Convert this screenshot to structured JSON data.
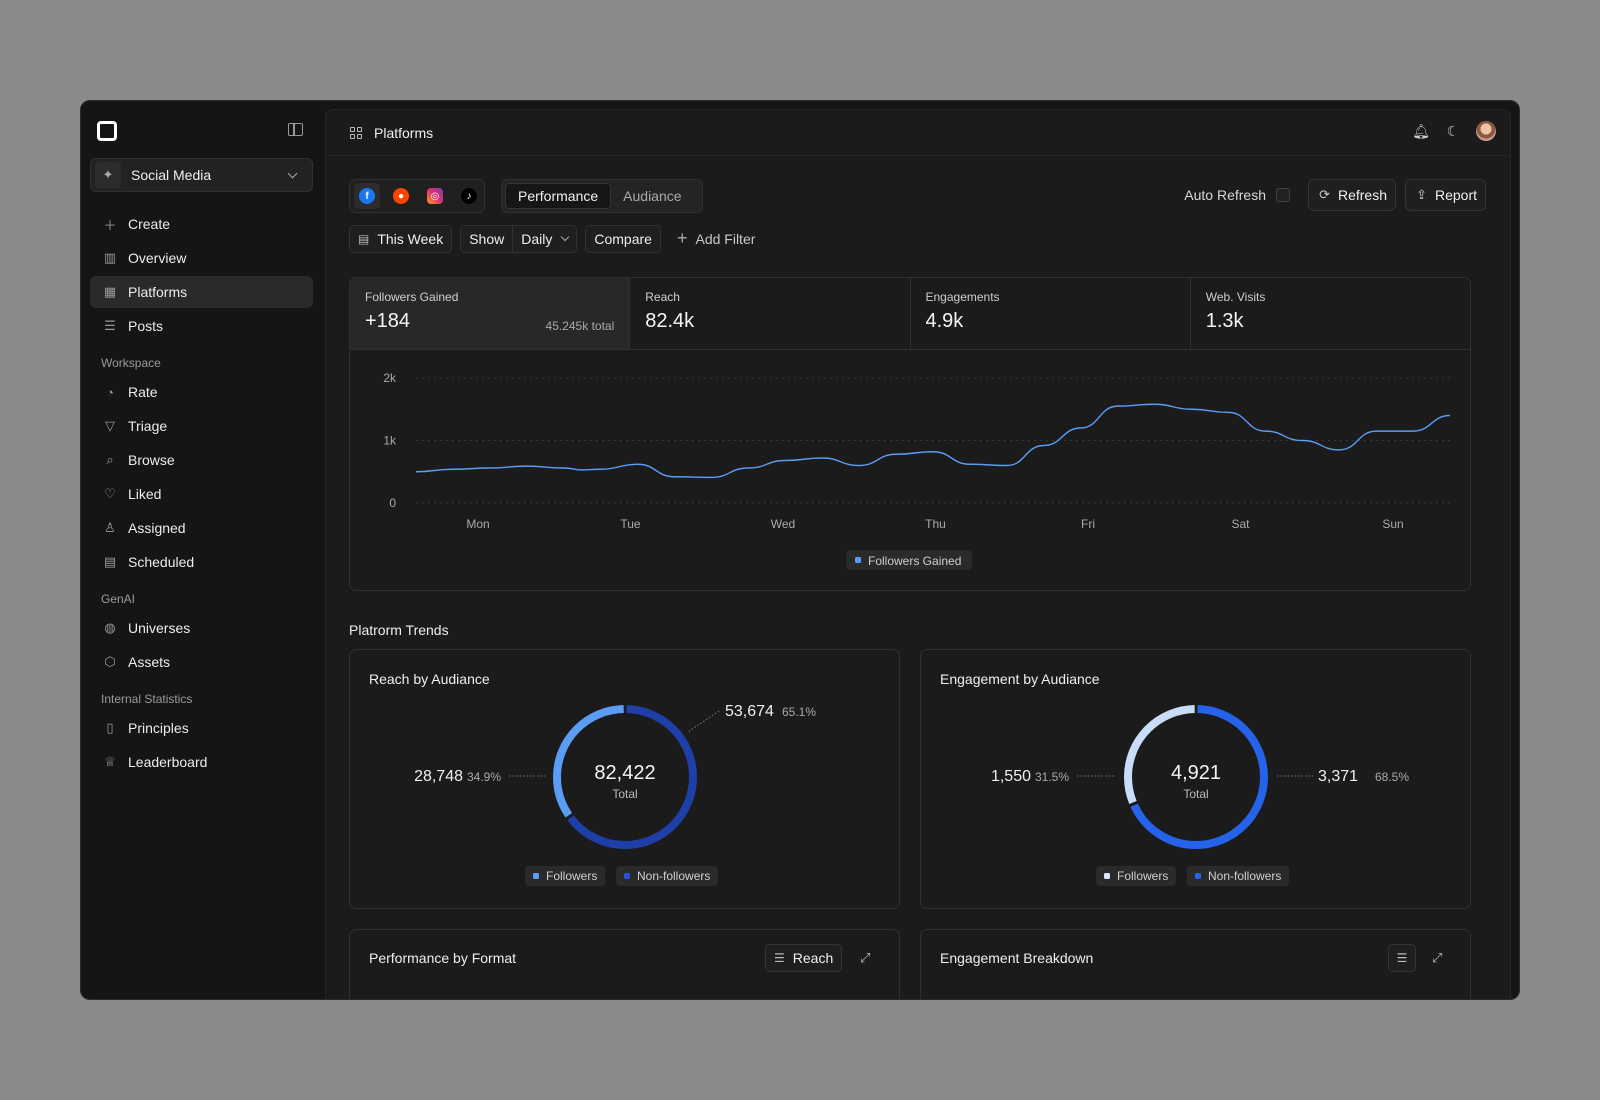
{
  "sidebar": {
    "workspace": "Social Media",
    "items": [
      {
        "label": "Create",
        "icon": "plus-icon"
      },
      {
        "label": "Overview",
        "icon": "bar-chart-icon"
      },
      {
        "label": "Platforms",
        "icon": "grid-icon",
        "active": true
      },
      {
        "label": "Posts",
        "icon": "stack-icon"
      }
    ],
    "workspace_section": "Workspace",
    "workspace_items": [
      {
        "label": "Rate",
        "icon": "gauge-icon"
      },
      {
        "label": "Triage",
        "icon": "filter-icon"
      },
      {
        "label": "Browse",
        "icon": "search-icon"
      },
      {
        "label": "Liked",
        "icon": "heart-icon"
      },
      {
        "label": "Assigned",
        "icon": "user-check-icon"
      },
      {
        "label": "Scheduled",
        "icon": "calendar-icon"
      }
    ],
    "genai_section": "GenAI",
    "genai_items": [
      {
        "label": "Universes",
        "icon": "planet-icon"
      },
      {
        "label": "Assets",
        "icon": "cube-icon"
      }
    ],
    "stats_section": "Internal Statistics",
    "stats_items": [
      {
        "label": "Principles",
        "icon": "book-icon"
      },
      {
        "label": "Leaderboard",
        "icon": "trophy-icon"
      }
    ]
  },
  "header": {
    "title": "Platforms"
  },
  "toolbar": {
    "tabs": [
      "Performance",
      "Audiance"
    ],
    "auto_refresh": "Auto Refresh",
    "refresh": "Refresh",
    "report": "Report",
    "date_range": "This Week",
    "show": "Show",
    "interval": "Daily",
    "compare": "Compare",
    "add_filter": "Add Filter"
  },
  "metrics": [
    {
      "label": "Followers Gained",
      "value": "+184",
      "total": "45.245k total"
    },
    {
      "label": "Reach",
      "value": "82.4k"
    },
    {
      "label": "Engagements",
      "value": "4.9k"
    },
    {
      "label": "Web. Visits",
      "value": "1.3k"
    }
  ],
  "colors": {
    "line": "#5b9cf5",
    "followers_light": "#5b9cf5",
    "nonfollowers_dark": "#1f3fa8",
    "eng_light": "#c9dcf8",
    "eng_dark": "#2563eb"
  },
  "chart_data": [
    {
      "type": "line",
      "categories": [
        "Mon",
        "Tue",
        "Wed",
        "Thu",
        "Fri",
        "Sat",
        "Sun"
      ],
      "yticks": [
        "2k",
        "1k",
        "0"
      ],
      "ylim": [
        0,
        2000
      ],
      "x": [
        0,
        0.5,
        1,
        1.5,
        2,
        2.25,
        2.5,
        3,
        3.5,
        4,
        4.5,
        5,
        5.5,
        6,
        6.5,
        7,
        7.5,
        8,
        8.5,
        9,
        9.5,
        10,
        10.5,
        11,
        11.5,
        12,
        12.5,
        13,
        13.5,
        14
      ],
      "series": [
        {
          "name": "Followers Gained",
          "values": [
            500,
            540,
            560,
            590,
            560,
            530,
            540,
            620,
            420,
            410,
            560,
            680,
            720,
            600,
            780,
            820,
            620,
            600,
            920,
            1200,
            1550,
            1580,
            1500,
            1450,
            1150,
            1000,
            850,
            1150,
            1150,
            1400
          ]
        }
      ],
      "legend": "bottom-center"
    },
    {
      "type": "pie",
      "title": "Reach by Audiance",
      "total": "82,422",
      "total_label": "Total",
      "slices": [
        {
          "name": "Followers",
          "value": "28,748",
          "pct": "34.9%",
          "share": 0.349
        },
        {
          "name": "Non-followers",
          "value": "53,674",
          "pct": "65.1%",
          "share": 0.651
        }
      ]
    },
    {
      "type": "pie",
      "title": "Engagement by Audiance",
      "total": "4,921",
      "total_label": "Total",
      "slices": [
        {
          "name": "Followers",
          "value": "1,550",
          "pct": "31.5%",
          "share": 0.315
        },
        {
          "name": "Non-followers",
          "value": "3,371",
          "pct": "68.5%",
          "share": 0.685
        }
      ]
    }
  ],
  "sections": {
    "trends": "Platrorm Trends",
    "format_title": "Performance by Format",
    "format_btn": "Reach",
    "breakdown_title": "Engagement Breakdown"
  }
}
